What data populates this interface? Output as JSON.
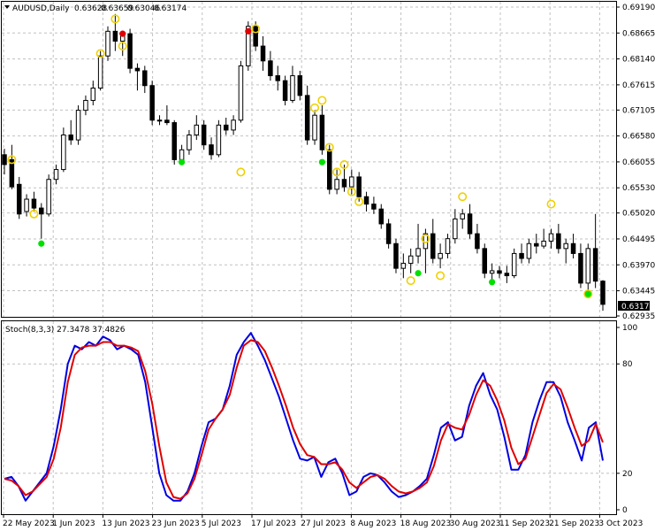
{
  "chart_data": [
    {
      "type": "candlestick",
      "symbol": "AUDUSD",
      "timeframe": "Daily",
      "title": "AUDUSD,Daily",
      "ohlc_header": [
        "0.63628",
        "0.63659",
        "0.63046",
        "0.63174"
      ],
      "current_price": "0.63174",
      "ylim": [
        0.62935,
        0.6919
      ],
      "y_ticks": [
        "0.69190",
        "0.68665",
        "0.68140",
        "0.67615",
        "0.67105",
        "0.66580",
        "0.66055",
        "0.65530",
        "0.65020",
        "0.64495",
        "0.63970",
        "0.63445",
        "0.62935"
      ],
      "grid": true,
      "candles": [
        {
          "o": 0.662,
          "h": 0.6632,
          "l": 0.658,
          "c": 0.66
        },
        {
          "o": 0.661,
          "h": 0.664,
          "l": 0.655,
          "c": 0.6555
        },
        {
          "o": 0.656,
          "h": 0.6575,
          "l": 0.649,
          "c": 0.65
        },
        {
          "o": 0.6505,
          "h": 0.654,
          "l": 0.6495,
          "c": 0.653
        },
        {
          "o": 0.653,
          "h": 0.6545,
          "l": 0.6505,
          "c": 0.6512
        },
        {
          "o": 0.6512,
          "h": 0.6522,
          "l": 0.645,
          "c": 0.65
        },
        {
          "o": 0.65,
          "h": 0.658,
          "l": 0.6495,
          "c": 0.657
        },
        {
          "o": 0.657,
          "h": 0.66,
          "l": 0.656,
          "c": 0.659
        },
        {
          "o": 0.659,
          "h": 0.6675,
          "l": 0.6585,
          "c": 0.666
        },
        {
          "o": 0.666,
          "h": 0.669,
          "l": 0.664,
          "c": 0.665
        },
        {
          "o": 0.665,
          "h": 0.672,
          "l": 0.664,
          "c": 0.671
        },
        {
          "o": 0.671,
          "h": 0.674,
          "l": 0.67,
          "c": 0.673
        },
        {
          "o": 0.673,
          "h": 0.677,
          "l": 0.672,
          "c": 0.6755
        },
        {
          "o": 0.6755,
          "h": 0.683,
          "l": 0.675,
          "c": 0.682
        },
        {
          "o": 0.682,
          "h": 0.688,
          "l": 0.681,
          "c": 0.687
        },
        {
          "o": 0.687,
          "h": 0.6905,
          "l": 0.683,
          "c": 0.685
        },
        {
          "o": 0.685,
          "h": 0.687,
          "l": 0.682,
          "c": 0.6865
        },
        {
          "o": 0.6865,
          "h": 0.6875,
          "l": 0.6785,
          "c": 0.6795
        },
        {
          "o": 0.6795,
          "h": 0.6805,
          "l": 0.675,
          "c": 0.679
        },
        {
          "o": 0.679,
          "h": 0.68,
          "l": 0.6745,
          "c": 0.676
        },
        {
          "o": 0.676,
          "h": 0.677,
          "l": 0.668,
          "c": 0.669
        },
        {
          "o": 0.669,
          "h": 0.67,
          "l": 0.668,
          "c": 0.669
        },
        {
          "o": 0.669,
          "h": 0.672,
          "l": 0.668,
          "c": 0.6685
        },
        {
          "o": 0.6685,
          "h": 0.669,
          "l": 0.66,
          "c": 0.661
        },
        {
          "o": 0.661,
          "h": 0.664,
          "l": 0.66,
          "c": 0.663
        },
        {
          "o": 0.663,
          "h": 0.667,
          "l": 0.662,
          "c": 0.666
        },
        {
          "o": 0.666,
          "h": 0.67,
          "l": 0.665,
          "c": 0.668
        },
        {
          "o": 0.668,
          "h": 0.669,
          "l": 0.663,
          "c": 0.664
        },
        {
          "o": 0.664,
          "h": 0.6655,
          "l": 0.661,
          "c": 0.662
        },
        {
          "o": 0.662,
          "h": 0.669,
          "l": 0.6615,
          "c": 0.668
        },
        {
          "o": 0.668,
          "h": 0.6695,
          "l": 0.666,
          "c": 0.667
        },
        {
          "o": 0.667,
          "h": 0.67,
          "l": 0.666,
          "c": 0.669
        },
        {
          "o": 0.669,
          "h": 0.681,
          "l": 0.6685,
          "c": 0.68
        },
        {
          "o": 0.68,
          "h": 0.689,
          "l": 0.679,
          "c": 0.688
        },
        {
          "o": 0.688,
          "h": 0.689,
          "l": 0.683,
          "c": 0.684
        },
        {
          "o": 0.684,
          "h": 0.686,
          "l": 0.679,
          "c": 0.681
        },
        {
          "o": 0.681,
          "h": 0.683,
          "l": 0.677,
          "c": 0.678
        },
        {
          "o": 0.678,
          "h": 0.68,
          "l": 0.675,
          "c": 0.677
        },
        {
          "o": 0.677,
          "h": 0.678,
          "l": 0.672,
          "c": 0.673
        },
        {
          "o": 0.673,
          "h": 0.68,
          "l": 0.6725,
          "c": 0.678
        },
        {
          "o": 0.678,
          "h": 0.679,
          "l": 0.673,
          "c": 0.674
        },
        {
          "o": 0.674,
          "h": 0.676,
          "l": 0.664,
          "c": 0.665
        },
        {
          "o": 0.665,
          "h": 0.671,
          "l": 0.664,
          "c": 0.67
        },
        {
          "o": 0.67,
          "h": 0.672,
          "l": 0.662,
          "c": 0.663
        },
        {
          "o": 0.663,
          "h": 0.664,
          "l": 0.654,
          "c": 0.655
        },
        {
          "o": 0.655,
          "h": 0.659,
          "l": 0.654,
          "c": 0.657
        },
        {
          "o": 0.657,
          "h": 0.66,
          "l": 0.6545,
          "c": 0.6555
        },
        {
          "o": 0.6555,
          "h": 0.659,
          "l": 0.654,
          "c": 0.6575
        },
        {
          "o": 0.6575,
          "h": 0.6585,
          "l": 0.6525,
          "c": 0.6535
        },
        {
          "o": 0.6535,
          "h": 0.6545,
          "l": 0.6505,
          "c": 0.652
        },
        {
          "o": 0.652,
          "h": 0.6535,
          "l": 0.65,
          "c": 0.651
        },
        {
          "o": 0.651,
          "h": 0.652,
          "l": 0.647,
          "c": 0.648
        },
        {
          "o": 0.648,
          "h": 0.649,
          "l": 0.643,
          "c": 0.644
        },
        {
          "o": 0.644,
          "h": 0.645,
          "l": 0.638,
          "c": 0.639
        },
        {
          "o": 0.639,
          "h": 0.642,
          "l": 0.637,
          "c": 0.64
        },
        {
          "o": 0.64,
          "h": 0.643,
          "l": 0.638,
          "c": 0.6415
        },
        {
          "o": 0.6415,
          "h": 0.648,
          "l": 0.64,
          "c": 0.643
        },
        {
          "o": 0.643,
          "h": 0.647,
          "l": 0.638,
          "c": 0.646
        },
        {
          "o": 0.646,
          "h": 0.649,
          "l": 0.64,
          "c": 0.641
        },
        {
          "o": 0.641,
          "h": 0.644,
          "l": 0.639,
          "c": 0.642
        },
        {
          "o": 0.642,
          "h": 0.646,
          "l": 0.641,
          "c": 0.645
        },
        {
          "o": 0.645,
          "h": 0.651,
          "l": 0.644,
          "c": 0.649
        },
        {
          "o": 0.649,
          "h": 0.651,
          "l": 0.647,
          "c": 0.65
        },
        {
          "o": 0.65,
          "h": 0.652,
          "l": 0.645,
          "c": 0.646
        },
        {
          "o": 0.646,
          "h": 0.648,
          "l": 0.642,
          "c": 0.643
        },
        {
          "o": 0.643,
          "h": 0.644,
          "l": 0.637,
          "c": 0.638
        },
        {
          "o": 0.638,
          "h": 0.64,
          "l": 0.6365,
          "c": 0.6385
        },
        {
          "o": 0.6385,
          "h": 0.6395,
          "l": 0.637,
          "c": 0.638
        },
        {
          "o": 0.638,
          "h": 0.6395,
          "l": 0.636,
          "c": 0.6375
        },
        {
          "o": 0.6375,
          "h": 0.643,
          "l": 0.637,
          "c": 0.642
        },
        {
          "o": 0.642,
          "h": 0.644,
          "l": 0.64,
          "c": 0.641
        },
        {
          "o": 0.641,
          "h": 0.645,
          "l": 0.64,
          "c": 0.644
        },
        {
          "o": 0.644,
          "h": 0.646,
          "l": 0.642,
          "c": 0.6435
        },
        {
          "o": 0.6435,
          "h": 0.647,
          "l": 0.643,
          "c": 0.6445
        },
        {
          "o": 0.6445,
          "h": 0.647,
          "l": 0.643,
          "c": 0.646
        },
        {
          "o": 0.646,
          "h": 0.648,
          "l": 0.642,
          "c": 0.643
        },
        {
          "o": 0.643,
          "h": 0.645,
          "l": 0.64,
          "c": 0.644
        },
        {
          "o": 0.644,
          "h": 0.646,
          "l": 0.641,
          "c": 0.642
        },
        {
          "o": 0.642,
          "h": 0.644,
          "l": 0.635,
          "c": 0.636
        },
        {
          "o": 0.636,
          "h": 0.644,
          "l": 0.634,
          "c": 0.643
        },
        {
          "o": 0.643,
          "h": 0.65,
          "l": 0.635,
          "c": 0.6364
        },
        {
          "o": 0.6364,
          "h": 0.6366,
          "l": 0.6304,
          "c": 0.6317
        }
      ],
      "signal_markers": {
        "yellow_circles": [
          [
            1,
            0.661
          ],
          [
            4,
            0.65
          ],
          [
            13,
            0.6825
          ],
          [
            15,
            0.6895
          ],
          [
            16,
            0.684
          ],
          [
            32,
            0.6585
          ],
          [
            34,
            0.6875
          ],
          [
            42,
            0.6715
          ],
          [
            43,
            0.673
          ],
          [
            44,
            0.6635
          ],
          [
            45,
            0.6585
          ],
          [
            46,
            0.66
          ],
          [
            47,
            0.6545
          ],
          [
            48,
            0.6525
          ],
          [
            55,
            0.6365
          ],
          [
            57,
            0.645
          ],
          [
            59,
            0.6375
          ],
          [
            62,
            0.6535
          ],
          [
            74,
            0.652
          ],
          [
            79,
            0.6338
          ]
        ],
        "green_dots": [
          [
            5,
            0.644
          ],
          [
            24,
            0.6605
          ],
          [
            43,
            0.6605
          ],
          [
            56,
            0.638
          ],
          [
            66,
            0.6362
          ],
          [
            79,
            0.6338
          ]
        ],
        "red_dots": [
          [
            16,
            0.6865
          ],
          [
            33,
            0.687
          ]
        ]
      },
      "marker_colors": {
        "yellow": "#f0d000",
        "green": "#00e000",
        "red": "#e00000"
      }
    },
    {
      "type": "line",
      "title": "Stoch(8,3,3) 27.3478 37.4826",
      "indicator": "Stoch(8,3,3)",
      "values_header": [
        "27.3478",
        "37.4826"
      ],
      "ylim": [
        0,
        100
      ],
      "y_ticks": [
        "100",
        "80",
        "20",
        "0"
      ],
      "levels": [
        80,
        20
      ],
      "x_labels": [
        "22 May 2023",
        "1 Jun 2023",
        "13 Jun 2023",
        "23 Jun 2023",
        "5 Jul 2023",
        "17 Jul 2023",
        "27 Jul 2023",
        "8 Aug 2023",
        "18 Aug 2023",
        "30 Aug 2023",
        "11 Sep 2023",
        "21 Sep 2023",
        "3 Oct 2023"
      ],
      "series": [
        {
          "color": "#0000e0",
          "values": [
            17,
            18,
            13,
            5,
            10,
            15,
            20,
            35,
            55,
            80,
            90,
            88,
            92,
            90,
            95,
            93,
            88,
            90,
            88,
            85,
            70,
            45,
            20,
            8,
            5,
            5,
            10,
            20,
            35,
            48,
            50,
            55,
            68,
            85,
            92,
            97,
            90,
            82,
            72,
            62,
            50,
            38,
            28,
            27,
            29,
            18,
            26,
            28,
            20,
            8,
            10,
            18,
            20,
            19,
            15,
            10,
            7,
            8,
            10,
            13,
            17,
            30,
            45,
            48,
            38,
            40,
            57,
            68,
            75,
            63,
            55,
            40,
            22,
            22,
            30,
            48,
            60,
            70,
            70,
            62,
            48,
            38,
            27,
            45,
            48,
            27
          ]
        },
        {
          "color": "#e00000",
          "values": [
            17,
            16,
            13,
            8,
            10,
            14,
            18,
            28,
            45,
            70,
            85,
            89,
            90,
            90,
            92,
            92,
            90,
            90,
            89,
            87,
            76,
            58,
            35,
            15,
            7,
            6,
            9,
            17,
            30,
            44,
            50,
            55,
            63,
            78,
            90,
            93,
            92,
            87,
            78,
            68,
            57,
            45,
            36,
            30,
            29,
            25,
            25,
            26,
            22,
            15,
            12,
            15,
            18,
            19,
            17,
            13,
            10,
            9,
            10,
            12,
            15,
            24,
            38,
            47,
            45,
            44,
            52,
            63,
            71,
            68,
            60,
            49,
            34,
            25,
            28,
            40,
            52,
            64,
            69,
            66,
            56,
            45,
            35,
            38,
            47,
            37
          ]
        }
      ]
    }
  ]
}
